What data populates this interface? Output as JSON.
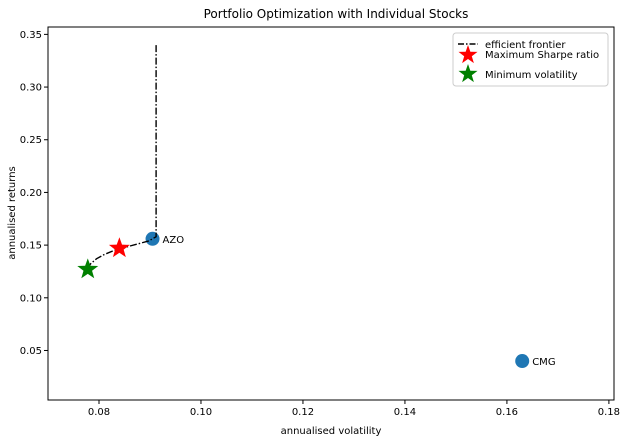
{
  "chart_data": {
    "type": "scatter",
    "title": "Portfolio Optimization with Individual Stocks",
    "xlabel": "annualised volatility",
    "ylabel": "annualised returns",
    "xlim": [
      0.07,
      0.181
    ],
    "ylim": [
      0.003,
      0.357
    ],
    "xticks": [
      0.08,
      0.1,
      0.12,
      0.14,
      0.16,
      0.18
    ],
    "xtick_labels": [
      "0.08",
      "0.10",
      "0.12",
      "0.14",
      "0.16",
      "0.18"
    ],
    "yticks": [
      0.05,
      0.1,
      0.15,
      0.2,
      0.25,
      0.3,
      0.35
    ],
    "ytick_labels": [
      "0.05",
      "0.10",
      "0.15",
      "0.20",
      "0.25",
      "0.30",
      "0.35"
    ],
    "grid": false,
    "legend_position": "top-right",
    "stocks": [
      {
        "label": "AZO",
        "x": 0.0905,
        "y": 0.156
      },
      {
        "label": "CMG",
        "x": 0.163,
        "y": 0.04
      }
    ],
    "max_sharpe": {
      "x": 0.084,
      "y": 0.147
    },
    "min_volatility": {
      "x": 0.0778,
      "y": 0.127
    },
    "frontier": {
      "x": [
        0.0778,
        0.0783,
        0.0795,
        0.081,
        0.083,
        0.0852,
        0.0875,
        0.0898,
        0.0912,
        0.0912,
        0.0912,
        0.0912,
        0.0912,
        0.0912
      ],
      "y": [
        0.127,
        0.132,
        0.137,
        0.141,
        0.145,
        0.148,
        0.151,
        0.154,
        0.158,
        0.2,
        0.25,
        0.3,
        0.33,
        0.34
      ]
    },
    "legend": [
      {
        "label": "efficient frontier",
        "marker": "line"
      },
      {
        "label": "Maximum Sharpe ratio",
        "marker": "star"
      },
      {
        "label": "Minimum volatility",
        "marker": "star"
      }
    ],
    "colors": {
      "stock_points": "#1f77b4",
      "max_sharpe": "#ff0000",
      "min_volatility": "#008000",
      "frontier_line": "#000000"
    }
  }
}
